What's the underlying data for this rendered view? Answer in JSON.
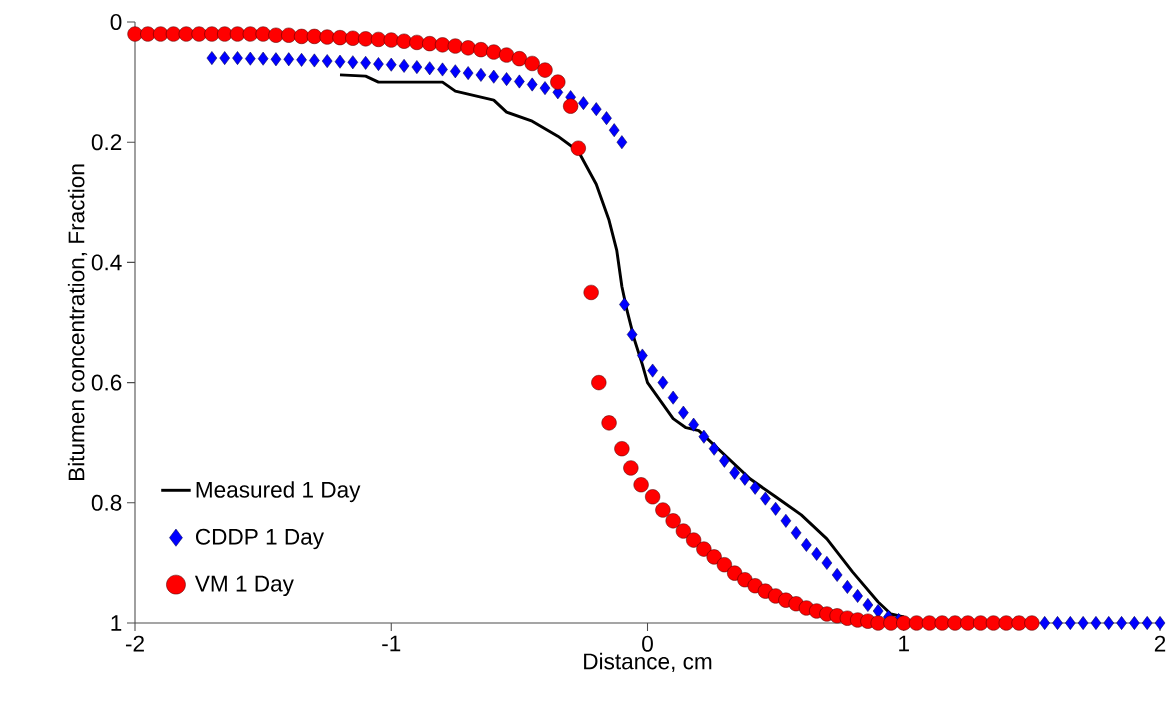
{
  "chart_data": {
    "type": "line",
    "xlabel": "Distance, cm",
    "ylabel": "Bitumen concentration, Fraction",
    "xlim": [
      -2,
      2
    ],
    "xticks": [
      -2,
      -1,
      0,
      1,
      2
    ],
    "ylim": [
      1,
      0
    ],
    "yticks": [
      0,
      0.2,
      0.4,
      0.6,
      0.8,
      1
    ],
    "grid": false,
    "legend": "bottom left",
    "series": [
      {
        "name": "Measured 1 Day",
        "color": "#000000",
        "marker": "none",
        "line_style": "solid",
        "x": [
          -1.2,
          -1.1,
          -1.05,
          -0.9,
          -0.8,
          -0.75,
          -0.7,
          -0.6,
          -0.55,
          -0.45,
          -0.35,
          -0.27,
          -0.2,
          -0.15,
          -0.12,
          -0.1,
          -0.08,
          -0.05,
          -0.02,
          0,
          0.05,
          0.1,
          0.15,
          0.2,
          0.3,
          0.4,
          0.5,
          0.6,
          0.7,
          0.8,
          0.9,
          0.95,
          1.0
        ],
        "values": [
          0.088,
          0.09,
          0.1,
          0.1,
          0.1,
          0.115,
          0.12,
          0.13,
          0.15,
          0.165,
          0.19,
          0.215,
          0.27,
          0.33,
          0.38,
          0.44,
          0.48,
          0.53,
          0.57,
          0.6,
          0.63,
          0.66,
          0.675,
          0.68,
          0.72,
          0.76,
          0.79,
          0.82,
          0.86,
          0.915,
          0.965,
          0.985,
          0.99
        ]
      },
      {
        "name": "CDDP 1 Day",
        "type": "scatter",
        "color": "#0000ff",
        "marker": "diamond",
        "x": [
          -1.7,
          -1.65,
          -1.6,
          -1.55,
          -1.5,
          -1.45,
          -1.4,
          -1.35,
          -1.3,
          -1.25,
          -1.2,
          -1.15,
          -1.1,
          -1.05,
          -1.0,
          -0.95,
          -0.9,
          -0.85,
          -0.8,
          -0.75,
          -0.7,
          -0.65,
          -0.6,
          -0.55,
          -0.5,
          -0.45,
          -0.4,
          -0.35,
          -0.3,
          -0.25,
          -0.2,
          -0.16,
          -0.13,
          -0.1,
          -0.09,
          -0.06,
          -0.02,
          0.02,
          0.06,
          0.1,
          0.14,
          0.18,
          0.22,
          0.26,
          0.3,
          0.34,
          0.38,
          0.42,
          0.46,
          0.5,
          0.54,
          0.58,
          0.62,
          0.66,
          0.7,
          0.74,
          0.78,
          0.82,
          0.86,
          0.9,
          0.94,
          0.98,
          1.05,
          1.1,
          1.15,
          1.2,
          1.25,
          1.3,
          1.35,
          1.4,
          1.45,
          1.5,
          1.55,
          1.6,
          1.65,
          1.7,
          1.75,
          1.8,
          1.85,
          1.9,
          1.95,
          2.0
        ],
        "values": [
          0.06,
          0.06,
          0.06,
          0.061,
          0.061,
          0.062,
          0.062,
          0.063,
          0.064,
          0.065,
          0.066,
          0.067,
          0.068,
          0.07,
          0.071,
          0.073,
          0.075,
          0.077,
          0.079,
          0.082,
          0.085,
          0.088,
          0.091,
          0.095,
          0.099,
          0.104,
          0.11,
          0.117,
          0.125,
          0.135,
          0.145,
          0.16,
          0.18,
          0.2,
          0.47,
          0.52,
          0.555,
          0.58,
          0.6,
          0.625,
          0.65,
          0.67,
          0.69,
          0.71,
          0.73,
          0.75,
          0.76,
          0.775,
          0.793,
          0.81,
          0.83,
          0.85,
          0.87,
          0.885,
          0.9,
          0.92,
          0.94,
          0.955,
          0.97,
          0.98,
          0.99,
          0.995,
          null,
          null,
          null,
          null,
          null,
          null,
          null,
          null,
          null,
          null,
          1,
          1,
          1,
          1,
          1,
          1,
          1,
          1,
          1,
          1
        ]
      },
      {
        "name": "VM 1 Day",
        "type": "scatter",
        "color": "#ff0000",
        "marker": "circle",
        "x": [
          -2,
          -1.95,
          -1.9,
          -1.85,
          -1.8,
          -1.75,
          -1.7,
          -1.65,
          -1.6,
          -1.55,
          -1.5,
          -1.45,
          -1.4,
          -1.35,
          -1.3,
          -1.25,
          -1.2,
          -1.15,
          -1.1,
          -1.05,
          -1.0,
          -0.95,
          -0.9,
          -0.85,
          -0.8,
          -0.75,
          -0.7,
          -0.65,
          -0.6,
          -0.55,
          -0.5,
          -0.45,
          -0.4,
          -0.35,
          -0.3,
          -0.27,
          -0.22,
          -0.19,
          -0.15,
          -0.1,
          -0.065,
          -0.025,
          0.02,
          0.06,
          0.1,
          0.14,
          0.18,
          0.22,
          0.26,
          0.3,
          0.34,
          0.38,
          0.42,
          0.46,
          0.5,
          0.54,
          0.58,
          0.62,
          0.66,
          0.7,
          0.74,
          0.78,
          0.82,
          0.86,
          0.9,
          0.95,
          1.0,
          1.05,
          1.1,
          1.15,
          1.2,
          1.25,
          1.3,
          1.35,
          1.4,
          1.45,
          1.5
        ],
        "values": [
          0.02,
          0.02,
          0.02,
          0.02,
          0.02,
          0.02,
          0.02,
          0.02,
          0.02,
          0.02,
          0.02,
          0.022,
          0.022,
          0.024,
          0.024,
          0.025,
          0.026,
          0.027,
          0.028,
          0.029,
          0.03,
          0.032,
          0.034,
          0.036,
          0.038,
          0.04,
          0.043,
          0.046,
          0.05,
          0.055,
          0.061,
          0.069,
          0.08,
          0.1,
          0.14,
          0.21,
          0.45,
          0.6,
          0.667,
          0.71,
          0.742,
          0.77,
          0.79,
          0.812,
          0.83,
          0.847,
          0.862,
          0.877,
          0.89,
          0.903,
          0.917,
          0.928,
          0.938,
          0.947,
          0.955,
          0.962,
          0.968,
          0.975,
          0.98,
          0.985,
          0.988,
          0.992,
          0.995,
          0.997,
          1,
          1,
          1,
          1,
          1,
          1,
          1,
          1,
          1,
          1,
          1,
          1,
          1
        ]
      }
    ]
  }
}
